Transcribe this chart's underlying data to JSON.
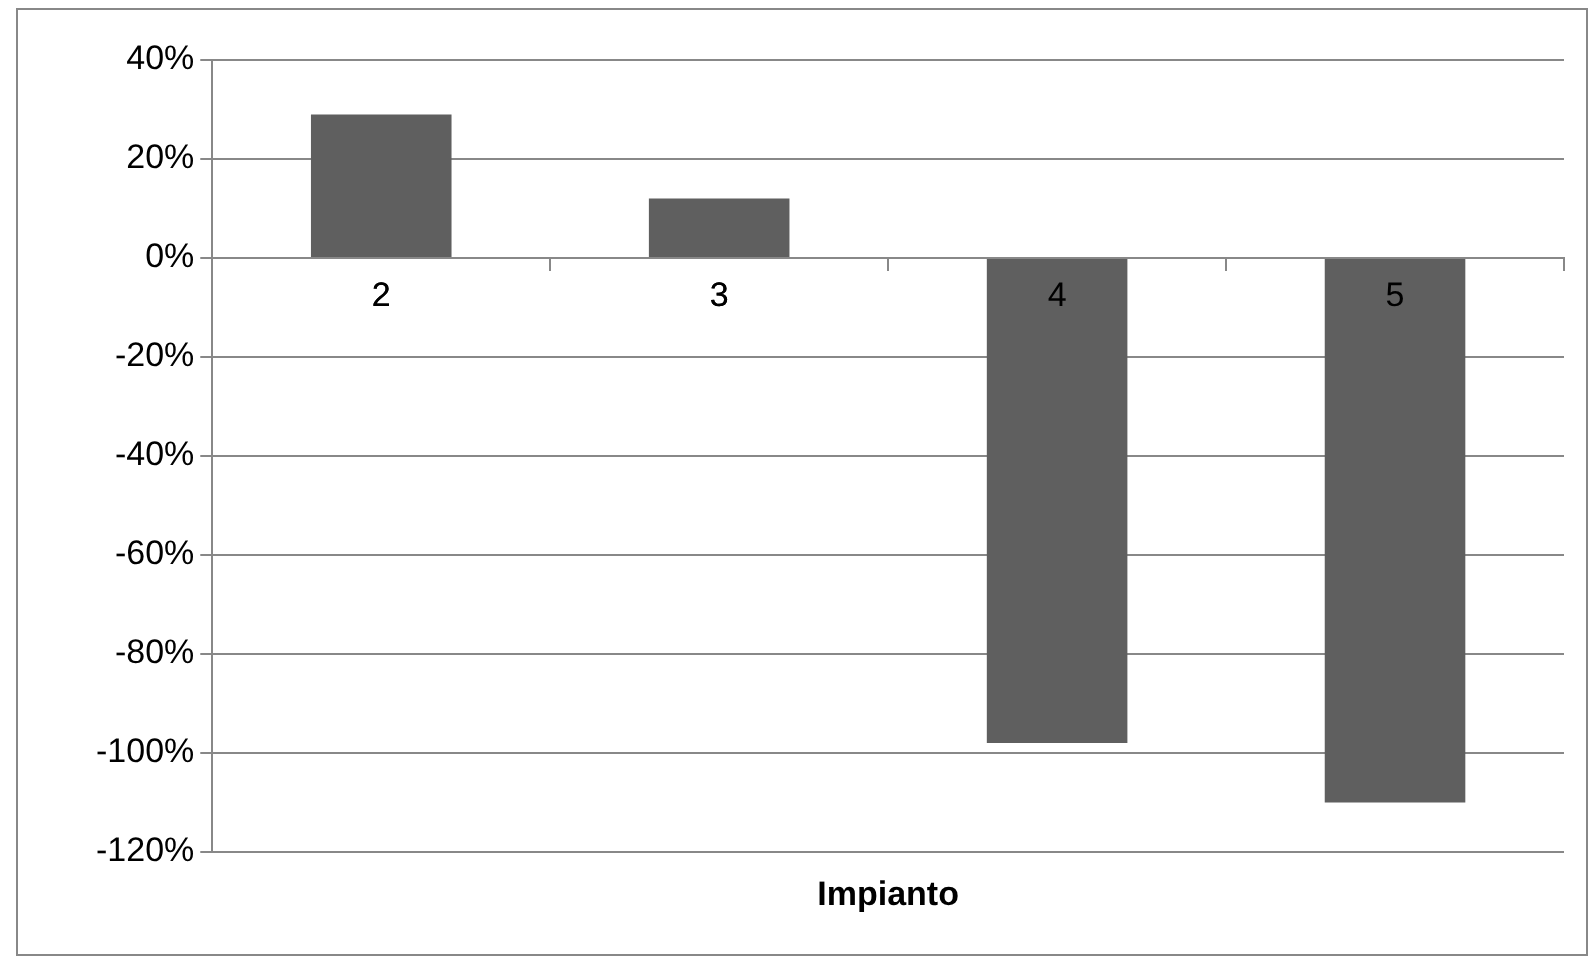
{
  "chart_data": {
    "type": "bar",
    "xlabel": "Impianto",
    "categories": [
      "2",
      "3",
      "4",
      "5"
    ],
    "values": [
      0.29,
      0.12,
      -0.98,
      -1.1
    ],
    "color": "#5f5f5f",
    "ylim": [
      -1.2,
      0.4
    ],
    "yticks": [
      {
        "value": -1.2,
        "label": "-120%"
      },
      {
        "value": -1,
        "label": "-100%"
      },
      {
        "value": -0.8,
        "label": "-80%"
      },
      {
        "value": -0.6,
        "label": "-60%"
      },
      {
        "value": -0.4,
        "label": "-40%"
      },
      {
        "value": -0.2,
        "label": "-20%"
      },
      {
        "value": 0,
        "label": "0%"
      },
      {
        "value": 0.2,
        "label": "20%"
      },
      {
        "value": 0.4,
        "label": "40%"
      }
    ],
    "grid": "y",
    "legend": false
  }
}
